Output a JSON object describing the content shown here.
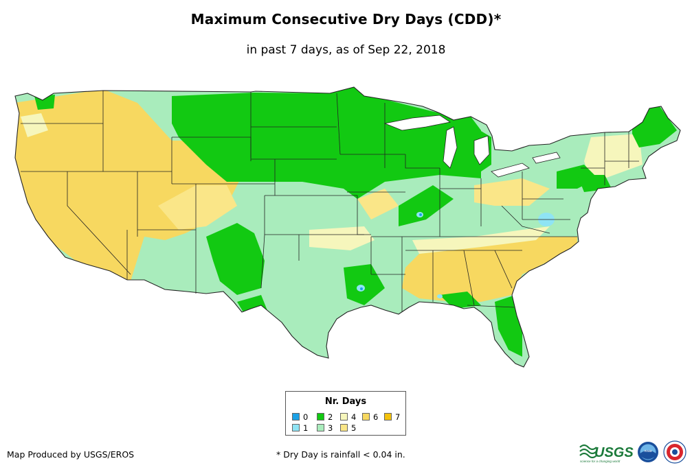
{
  "header": {
    "title": "Maximum Consecutive Dry Days (CDD)*",
    "subtitle": "in past 7 days, as of Sep 22, 2018"
  },
  "legend": {
    "title": "Nr. Days",
    "items": [
      {
        "label": "0",
        "color": "#1ba1e6"
      },
      {
        "label": "1",
        "color": "#8fe4f4"
      },
      {
        "label": "2",
        "color": "#12c912"
      },
      {
        "label": "3",
        "color": "#a9ecbc"
      },
      {
        "label": "4",
        "color": "#f6f6bc"
      },
      {
        "label": "5",
        "color": "#fae688"
      },
      {
        "label": "6",
        "color": "#f7d860"
      },
      {
        "label": "7",
        "color": "#f4c20c"
      }
    ]
  },
  "footer": {
    "credit": "Map Produced by USGS/EROS",
    "footnote": "* Dry Day is rainfall < 0.04 in.",
    "usgs_logo_text": "USGS",
    "usgs_tagline": "science for a changing world",
    "noaa_logo_text": "noaa"
  },
  "colors": {
    "state_border": "#222222",
    "map_background": "#ffffff"
  }
}
